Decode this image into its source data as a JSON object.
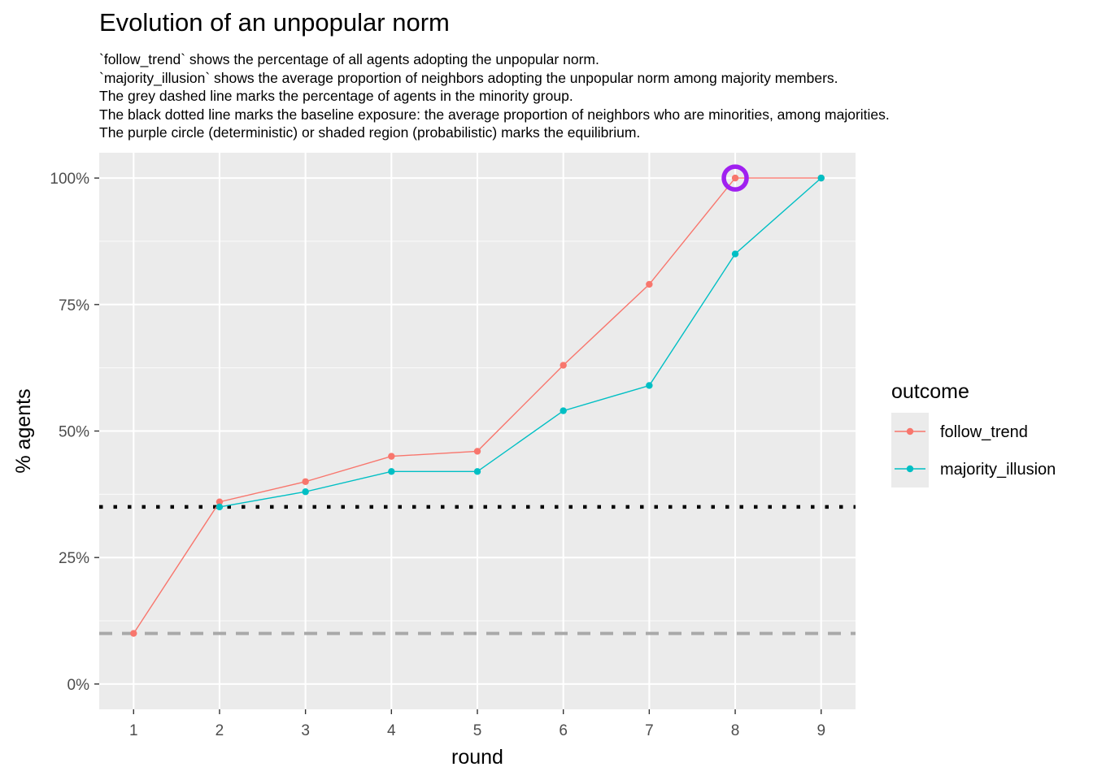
{
  "chart_data": {
    "type": "line",
    "title": "Evolution of an unpopular norm",
    "subtitle_lines": [
      "`follow_trend` shows the percentage of all agents adopting the unpopular norm.",
      "`majority_illusion` shows the average proportion of neighbors adopting the unpopular norm among majority members.",
      "The grey dashed line marks the percentage of agents in the minority group.",
      "The black dotted line marks the baseline exposure: the average proportion of neighbors who are minorities, among majorities.",
      "The purple circle (deterministic) or shaded region (probabilistic) marks the equilibrium."
    ],
    "xlabel": "round",
    "ylabel": "% agents",
    "x": [
      1,
      2,
      3,
      4,
      5,
      6,
      7,
      8,
      9
    ],
    "xlim": [
      0.6,
      9.4
    ],
    "ylim": [
      -0.05,
      1.05
    ],
    "y_ticks": [
      0,
      0.25,
      0.5,
      0.75,
      1.0
    ],
    "y_tick_labels": [
      "0%",
      "25%",
      "50%",
      "75%",
      "100%"
    ],
    "x_tick_labels": [
      "1",
      "2",
      "3",
      "4",
      "5",
      "6",
      "7",
      "8",
      "9"
    ],
    "series": [
      {
        "name": "follow_trend",
        "color": "#F8766D",
        "values": [
          0.1,
          0.36,
          0.4,
          0.45,
          0.46,
          0.63,
          0.79,
          1.0,
          1.0
        ]
      },
      {
        "name": "majority_illusion",
        "color": "#00BFC4",
        "values": [
          null,
          0.35,
          0.38,
          0.42,
          0.42,
          0.54,
          0.59,
          0.85,
          1.0
        ]
      }
    ],
    "reference_lines": [
      {
        "kind": "minority-share",
        "y": 0.1,
        "style": "dashed",
        "color": "#A9A9A9"
      },
      {
        "kind": "baseline-exposure",
        "y": 0.35,
        "style": "dotted",
        "color": "#000000"
      }
    ],
    "equilibrium_marker": {
      "x": 8,
      "y": 1.0,
      "color": "#A020F0"
    },
    "legend": {
      "title": "outcome",
      "position": "right"
    },
    "grid": true,
    "panel_background": "#EBEBEB"
  }
}
